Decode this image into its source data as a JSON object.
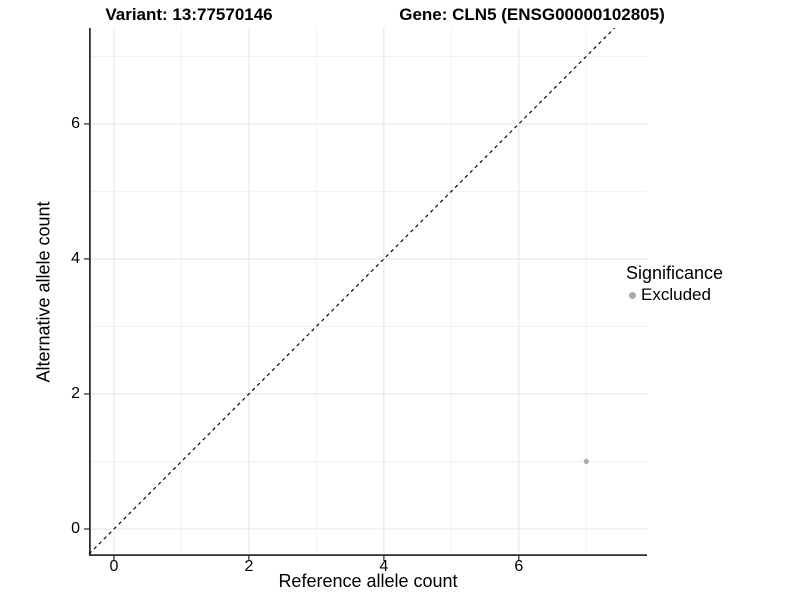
{
  "titles": {
    "left": "Variant: 13:77570146",
    "right": "Gene: CLN5 (ENSG00000102805)"
  },
  "chart_data": {
    "type": "scatter",
    "xlabel": "Reference allele count",
    "ylabel": "Alternative allele count",
    "x_ticks": [
      0,
      2,
      4,
      6
    ],
    "y_ticks": [
      0,
      2,
      4,
      6
    ],
    "x_minor_gridlines": [
      1,
      3,
      5,
      7
    ],
    "y_minor_gridlines": [
      1,
      3,
      5,
      7
    ],
    "xlim": [
      -0.37,
      7.9
    ],
    "ylim": [
      -0.4,
      7.42
    ],
    "grid": true,
    "identity_line": {
      "equation": "y = x",
      "style": "dashed",
      "color": "#000000"
    },
    "points": [
      {
        "x": 7,
        "y": 1,
        "significance": "Excluded",
        "color": "#aaaaaa"
      }
    ],
    "legend": {
      "title": "Significance",
      "position": "right",
      "items": [
        {
          "label": "Excluded",
          "color": "#aaaaaa"
        }
      ]
    }
  },
  "colors": {
    "background": "#ffffff",
    "grid_major": "#e7e7e7",
    "grid_minor": "#f1f1f1",
    "axis_line": "#2f2f2f",
    "tick_mark": "#333333",
    "point": "#aaaaaa",
    "text": "#000000"
  }
}
